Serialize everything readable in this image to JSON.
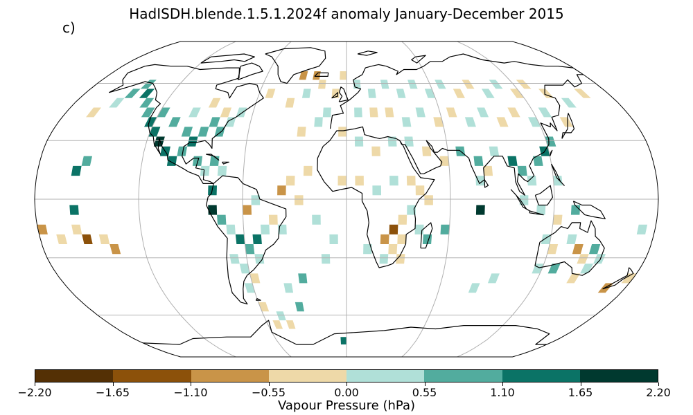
{
  "title": "HadISDH.blende.1.5.1.2024f anomaly January-December 2015",
  "panel_label": "c)",
  "colorbar": {
    "label": "Vapour Pressure (hPa)",
    "ticks": [
      "−2.20",
      "−1.65",
      "−1.10",
      "−0.55",
      "0.00",
      "0.55",
      "1.10",
      "1.65",
      "2.20"
    ],
    "colors": [
      "#543005",
      "#8c510a",
      "#c99448",
      "#eed9a8",
      "#b0e0d8",
      "#52ac9e",
      "#0b7366",
      "#00392f"
    ]
  },
  "map": {
    "projection": "Robinson",
    "variable": "vapour pressure anomaly",
    "units": "hPa",
    "graticule": true,
    "cells": [
      {
        "lon": -165,
        "lat": 47,
        "c": 3
      },
      {
        "lon": -155,
        "lat": 52,
        "c": 4
      },
      {
        "lon": -150,
        "lat": 57,
        "c": 5
      },
      {
        "lon": -145,
        "lat": 62,
        "c": 5
      },
      {
        "lon": -140,
        "lat": 57,
        "c": 6
      },
      {
        "lon": -135,
        "lat": 52,
        "c": 5
      },
      {
        "lon": -130,
        "lat": 47,
        "c": 5
      },
      {
        "lon": -125,
        "lat": 42,
        "c": 6
      },
      {
        "lon": -120,
        "lat": 37,
        "c": 6
      },
      {
        "lon": -115,
        "lat": 32,
        "c": 7
      },
      {
        "lon": -110,
        "lat": 27,
        "c": 6
      },
      {
        "lon": -105,
        "lat": 22,
        "c": 6
      },
      {
        "lon": -120,
        "lat": 47,
        "c": 5
      },
      {
        "lon": -110,
        "lat": 42,
        "c": 5
      },
      {
        "lon": -100,
        "lat": 37,
        "c": 5
      },
      {
        "lon": -95,
        "lat": 32,
        "c": 6
      },
      {
        "lon": -90,
        "lat": 37,
        "c": 5
      },
      {
        "lon": -85,
        "lat": 42,
        "c": 5
      },
      {
        "lon": -80,
        "lat": 37,
        "c": 5
      },
      {
        "lon": -75,
        "lat": 42,
        "c": 4
      },
      {
        "lon": -100,
        "lat": 47,
        "c": 4
      },
      {
        "lon": -90,
        "lat": 52,
        "c": 3
      },
      {
        "lon": -80,
        "lat": 47,
        "c": 3
      },
      {
        "lon": -70,
        "lat": 47,
        "c": 4
      },
      {
        "lon": -100,
        "lat": 27,
        "c": 5
      },
      {
        "lon": -90,
        "lat": 22,
        "c": 5
      },
      {
        "lon": -85,
        "lat": 17,
        "c": 4
      },
      {
        "lon": -80,
        "lat": 22,
        "c": 5
      },
      {
        "lon": -75,
        "lat": 17,
        "c": 4
      },
      {
        "lon": -80,
        "lat": 7,
        "c": 6
      },
      {
        "lon": -80,
        "lat": -3,
        "c": 7
      },
      {
        "lon": -75,
        "lat": -8,
        "c": 5
      },
      {
        "lon": -70,
        "lat": -13,
        "c": 4
      },
      {
        "lon": -65,
        "lat": -18,
        "c": 6
      },
      {
        "lon": -60,
        "lat": -23,
        "c": 5
      },
      {
        "lon": -55,
        "lat": -18,
        "c": 6
      },
      {
        "lon": -50,
        "lat": -13,
        "c": 4
      },
      {
        "lon": -45,
        "lat": -8,
        "c": 3
      },
      {
        "lon": -40,
        "lat": -13,
        "c": 4
      },
      {
        "lon": -60,
        "lat": -3,
        "c": 2
      },
      {
        "lon": -55,
        "lat": 2,
        "c": 4
      },
      {
        "lon": -65,
        "lat": -33,
        "c": 4
      },
      {
        "lon": -60,
        "lat": -38,
        "c": 3
      },
      {
        "lon": -65,
        "lat": -43,
        "c": 4
      },
      {
        "lon": -55,
        "lat": -28,
        "c": 4
      },
      {
        "lon": -70,
        "lat": -28,
        "c": 4
      },
      {
        "lon": -40,
        "lat": 7,
        "c": 2
      },
      {
        "lon": -35,
        "lat": 12,
        "c": 3
      },
      {
        "lon": -25,
        "lat": 17,
        "c": 3
      },
      {
        "lon": -30,
        "lat": 37,
        "c": 3
      },
      {
        "lon": -20,
        "lat": 42,
        "c": 4
      },
      {
        "lon": -15,
        "lat": 47,
        "c": 4
      },
      {
        "lon": -40,
        "lat": 52,
        "c": 3
      },
      {
        "lon": -30,
        "lat": 57,
        "c": 4
      },
      {
        "lon": -55,
        "lat": 57,
        "c": 3
      },
      {
        "lon": -35,
        "lat": 67,
        "c": 2
      },
      {
        "lon": -25,
        "lat": 67,
        "c": 2
      },
      {
        "lon": -20,
        "lat": 62,
        "c": 3
      },
      {
        "lon": -10,
        "lat": 57,
        "c": 3
      },
      {
        "lon": -5,
        "lat": 67,
        "c": 3
      },
      {
        "lon": 5,
        "lat": 62,
        "c": 4
      },
      {
        "lon": 15,
        "lat": 57,
        "c": 4
      },
      {
        "lon": 25,
        "lat": 62,
        "c": 4
      },
      {
        "lon": 35,
        "lat": 57,
        "c": 4
      },
      {
        "lon": 45,
        "lat": 62,
        "c": 4
      },
      {
        "lon": 55,
        "lat": 57,
        "c": 4
      },
      {
        "lon": 65,
        "lat": 62,
        "c": 4
      },
      {
        "lon": 75,
        "lat": 57,
        "c": 3
      },
      {
        "lon": 85,
        "lat": 62,
        "c": 3
      },
      {
        "lon": 95,
        "lat": 57,
        "c": 4
      },
      {
        "lon": 105,
        "lat": 62,
        "c": 4
      },
      {
        "lon": 115,
        "lat": 57,
        "c": 3
      },
      {
        "lon": 125,
        "lat": 62,
        "c": 3
      },
      {
        "lon": 135,
        "lat": 57,
        "c": 3
      },
      {
        "lon": 145,
        "lat": 52,
        "c": 4
      },
      {
        "lon": 160,
        "lat": 57,
        "c": 3
      },
      {
        "lon": 5,
        "lat": 47,
        "c": 4
      },
      {
        "lon": 15,
        "lat": 47,
        "c": 3
      },
      {
        "lon": 25,
        "lat": 47,
        "c": 3
      },
      {
        "lon": 35,
        "lat": 42,
        "c": 4
      },
      {
        "lon": 45,
        "lat": 47,
        "c": 4
      },
      {
        "lon": 55,
        "lat": 42,
        "c": 3
      },
      {
        "lon": 65,
        "lat": 47,
        "c": 3
      },
      {
        "lon": 75,
        "lat": 42,
        "c": 4
      },
      {
        "lon": 85,
        "lat": 47,
        "c": 4
      },
      {
        "lon": 95,
        "lat": 42,
        "c": 3
      },
      {
        "lon": 105,
        "lat": 47,
        "c": 3
      },
      {
        "lon": 115,
        "lat": 42,
        "c": 4
      },
      {
        "lon": 125,
        "lat": 47,
        "c": 4
      },
      {
        "lon": 135,
        "lat": 42,
        "c": 3
      },
      {
        "lon": -5,
        "lat": 37,
        "c": 3
      },
      {
        "lon": 5,
        "lat": 32,
        "c": 4
      },
      {
        "lon": 15,
        "lat": 27,
        "c": 3
      },
      {
        "lon": 25,
        "lat": 32,
        "c": 4
      },
      {
        "lon": 35,
        "lat": 32,
        "c": 4
      },
      {
        "lon": 45,
        "lat": 27,
        "c": 3
      },
      {
        "lon": 55,
        "lat": 22,
        "c": 3
      },
      {
        "lon": 65,
        "lat": 27,
        "c": 5
      },
      {
        "lon": 75,
        "lat": 22,
        "c": 5
      },
      {
        "lon": 85,
        "lat": 27,
        "c": 4
      },
      {
        "lon": 95,
        "lat": 22,
        "c": 6
      },
      {
        "lon": 100,
        "lat": 17,
        "c": 5
      },
      {
        "lon": 110,
        "lat": 22,
        "c": 5
      },
      {
        "lon": 115,
        "lat": 27,
        "c": 6
      },
      {
        "lon": 120,
        "lat": 32,
        "c": 5
      },
      {
        "lon": 75,
        "lat": 12,
        "c": 4
      },
      {
        "lon": 80,
        "lat": 17,
        "c": 3
      },
      {
        "lon": 105,
        "lat": 12,
        "c": 4
      },
      {
        "lon": 120,
        "lat": 12,
        "c": 4
      },
      {
        "lon": 100,
        "lat": 2,
        "c": 4
      },
      {
        "lon": 110,
        "lat": -3,
        "c": 4
      },
      {
        "lon": 120,
        "lat": -8,
        "c": 3
      },
      {
        "lon": 130,
        "lat": -3,
        "c": 5
      },
      {
        "lon": 115,
        "lat": -18,
        "c": 4
      },
      {
        "lon": 120,
        "lat": -23,
        "c": 3
      },
      {
        "lon": 130,
        "lat": -18,
        "c": 4
      },
      {
        "lon": 135,
        "lat": -23,
        "c": 2
      },
      {
        "lon": 140,
        "lat": -28,
        "c": 3
      },
      {
        "lon": 145,
        "lat": -23,
        "c": 5
      },
      {
        "lon": 150,
        "lat": -28,
        "c": 4
      },
      {
        "lon": 145,
        "lat": -33,
        "c": 4
      },
      {
        "lon": 140,
        "lat": -38,
        "c": 3
      },
      {
        "lon": 125,
        "lat": -33,
        "c": 5
      },
      {
        "lon": 115,
        "lat": -33,
        "c": 4
      },
      {
        "lon": 165,
        "lat": -43,
        "c": 2
      },
      {
        "lon": 175,
        "lat": -38,
        "c": 3
      },
      {
        "lon": 170,
        "lat": -13,
        "c": 4
      },
      {
        "lon": -180,
        "lat": -13,
        "c": 2
      },
      {
        "lon": -170,
        "lat": -18,
        "c": 3
      },
      {
        "lon": -160,
        "lat": -13,
        "c": 3
      },
      {
        "lon": -155,
        "lat": -18,
        "c": 1
      },
      {
        "lon": -145,
        "lat": -18,
        "c": 3
      },
      {
        "lon": -140,
        "lat": -23,
        "c": 2
      },
      {
        "lon": -160,
        "lat": -3,
        "c": 6
      },
      {
        "lon": -160,
        "lat": 17,
        "c": 6
      },
      {
        "lon": -155,
        "lat": 22,
        "c": 5
      },
      {
        "lon": -5,
        "lat": 12,
        "c": 3
      },
      {
        "lon": 5,
        "lat": 12,
        "c": 3
      },
      {
        "lon": 15,
        "lat": 7,
        "c": 4
      },
      {
        "lon": 25,
        "lat": 12,
        "c": 4
      },
      {
        "lon": 35,
        "lat": 12,
        "c": 3
      },
      {
        "lon": 40,
        "lat": 7,
        "c": 3
      },
      {
        "lon": 45,
        "lat": 2,
        "c": 3
      },
      {
        "lon": 35,
        "lat": -3,
        "c": 4
      },
      {
        "lon": 30,
        "lat": -8,
        "c": 3
      },
      {
        "lon": 25,
        "lat": -13,
        "c": 1
      },
      {
        "lon": 20,
        "lat": -18,
        "c": 2
      },
      {
        "lon": 30,
        "lat": -18,
        "c": 3
      },
      {
        "lon": 25,
        "lat": -23,
        "c": 3
      },
      {
        "lon": 20,
        "lat": -28,
        "c": 4
      },
      {
        "lon": 30,
        "lat": -28,
        "c": 3
      },
      {
        "lon": 10,
        "lat": -23,
        "c": 4
      },
      {
        "lon": 45,
        "lat": -18,
        "c": 5
      },
      {
        "lon": 40,
        "lat": -13,
        "c": 4
      },
      {
        "lon": 55,
        "lat": -13,
        "c": 5
      },
      {
        "lon": 75,
        "lat": -3,
        "c": 7
      },
      {
        "lon": -30,
        "lat": 2,
        "c": 3
      },
      {
        "lon": -20,
        "lat": -8,
        "c": 4
      },
      {
        "lon": -10,
        "lat": -18,
        "c": 4
      },
      {
        "lon": -15,
        "lat": -28,
        "c": 4
      },
      {
        "lon": -30,
        "lat": -38,
        "c": 5
      },
      {
        "lon": -55,
        "lat": -63,
        "c": 3
      },
      {
        "lon": -45,
        "lat": -63,
        "c": 3
      },
      {
        "lon": -35,
        "lat": -53,
        "c": 5
      },
      {
        "lon": -60,
        "lat": -53,
        "c": 3
      },
      {
        "lon": -50,
        "lat": -58,
        "c": 4
      },
      {
        "lon": -40,
        "lat": -43,
        "c": 4
      },
      {
        "lon": 80,
        "lat": -43,
        "c": 4
      },
      {
        "lon": 90,
        "lat": -38,
        "c": 4
      },
      {
        "lon": -5,
        "lat": -73,
        "c": 6
      }
    ]
  }
}
